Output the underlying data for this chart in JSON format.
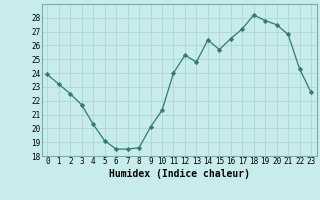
{
  "x": [
    0,
    1,
    2,
    3,
    4,
    5,
    6,
    7,
    8,
    9,
    10,
    11,
    12,
    13,
    14,
    15,
    16,
    17,
    18,
    19,
    20,
    21,
    22,
    23
  ],
  "y": [
    23.9,
    23.2,
    22.5,
    21.7,
    20.3,
    19.1,
    18.5,
    18.5,
    18.6,
    20.1,
    21.3,
    24.0,
    25.3,
    24.8,
    26.4,
    25.7,
    26.5,
    27.2,
    28.2,
    27.8,
    27.5,
    26.8,
    24.3,
    22.6
  ],
  "line_color": "#2e7d6e",
  "marker": "D",
  "marker_size": 2.2,
  "bg_color": "#c8ecec",
  "grid_color": "#aed6d6",
  "xlabel": "Humidex (Indice chaleur)",
  "ylim": [
    18,
    29
  ],
  "xlim": [
    -0.5,
    23.5
  ],
  "yticks": [
    18,
    19,
    20,
    21,
    22,
    23,
    24,
    25,
    26,
    27,
    28
  ],
  "xticks": [
    0,
    1,
    2,
    3,
    4,
    5,
    6,
    7,
    8,
    9,
    10,
    11,
    12,
    13,
    14,
    15,
    16,
    17,
    18,
    19,
    20,
    21,
    22,
    23
  ],
  "tick_fontsize": 5.5,
  "xlabel_fontsize": 7.0
}
